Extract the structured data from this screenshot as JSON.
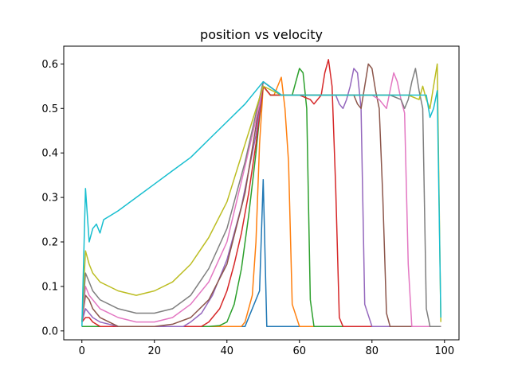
{
  "chart_data": {
    "type": "line",
    "title": "position vs velocity",
    "xlabel": "",
    "ylabel": "",
    "xlim": [
      -5,
      104
    ],
    "ylim": [
      -0.02,
      0.64
    ],
    "xticks": [
      0,
      20,
      40,
      60,
      80,
      100
    ],
    "yticks": [
      0.0,
      0.1,
      0.2,
      0.3,
      0.4,
      0.5,
      0.6
    ],
    "xtick_labels": [
      "0",
      "20",
      "40",
      "60",
      "80",
      "100"
    ],
    "ytick_labels": [
      "0.0",
      "0.1",
      "0.2",
      "0.3",
      "0.4",
      "0.5",
      "0.6"
    ],
    "grid": false,
    "legend": "none",
    "colors": [
      "#1f77b4",
      "#ff7f0e",
      "#2ca02c",
      "#d62728",
      "#9467bd",
      "#8c564b",
      "#e377c2",
      "#7f7f7f",
      "#bcbd22",
      "#17becf"
    ],
    "series": [
      {
        "x": [
          0,
          5,
          10,
          15,
          20,
          25,
          30,
          35,
          40,
          45,
          49,
          50,
          51,
          55,
          60,
          65,
          70,
          75,
          80,
          85,
          90,
          95,
          98,
          99
        ],
        "y": [
          0.01,
          0.01,
          0.01,
          0.01,
          0.01,
          0.01,
          0.01,
          0.01,
          0.01,
          0.01,
          0.09,
          0.34,
          0.01,
          0.01,
          0.01,
          0.01,
          0.01,
          0.01,
          0.01,
          0.01,
          0.01,
          0.01,
          0.01,
          0.01
        ]
      },
      {
        "x": [
          0,
          5,
          10,
          15,
          20,
          25,
          30,
          35,
          40,
          44,
          45,
          47,
          48,
          49,
          50,
          52,
          53,
          55,
          56,
          57,
          58,
          60,
          65,
          70,
          80,
          90,
          97,
          98,
          99
        ],
        "y": [
          0.01,
          0.01,
          0.01,
          0.01,
          0.01,
          0.01,
          0.01,
          0.01,
          0.01,
          0.01,
          0.02,
          0.08,
          0.2,
          0.42,
          0.55,
          0.53,
          0.53,
          0.57,
          0.5,
          0.38,
          0.06,
          0.01,
          0.01,
          0.01,
          0.01,
          0.01,
          0.01,
          0.01,
          0.01
        ]
      },
      {
        "x": [
          0,
          5,
          10,
          15,
          20,
          25,
          30,
          35,
          38,
          40,
          42,
          44,
          46,
          48,
          49,
          50,
          52,
          55,
          58,
          60,
          61,
          62,
          63,
          64,
          65,
          70,
          80,
          90,
          98,
          99
        ],
        "y": [
          0.01,
          0.01,
          0.01,
          0.01,
          0.01,
          0.01,
          0.01,
          0.01,
          0.012,
          0.02,
          0.06,
          0.14,
          0.26,
          0.4,
          0.48,
          0.55,
          0.53,
          0.53,
          0.53,
          0.59,
          0.58,
          0.5,
          0.07,
          0.01,
          0.01,
          0.01,
          0.01,
          0.01,
          0.01,
          0.01
        ]
      },
      {
        "x": [
          0,
          1,
          2,
          3,
          5,
          10,
          15,
          20,
          25,
          30,
          33,
          35,
          38,
          40,
          42,
          44,
          46,
          48,
          50,
          52,
          55,
          60,
          63,
          64,
          66,
          67,
          68,
          69,
          70,
          71,
          72,
          75,
          80,
          90,
          98,
          99
        ],
        "y": [
          0.02,
          0.03,
          0.03,
          0.02,
          0.01,
          0.01,
          0.01,
          0.01,
          0.01,
          0.01,
          0.01,
          0.02,
          0.05,
          0.09,
          0.15,
          0.22,
          0.31,
          0.42,
          0.55,
          0.53,
          0.53,
          0.53,
          0.52,
          0.51,
          0.53,
          0.58,
          0.61,
          0.55,
          0.32,
          0.03,
          0.01,
          0.01,
          0.01,
          0.01,
          0.01,
          0.01
        ]
      },
      {
        "x": [
          0,
          1,
          2,
          3,
          5,
          10,
          15,
          20,
          25,
          28,
          30,
          33,
          36,
          40,
          44,
          48,
          50,
          55,
          60,
          65,
          70,
          71,
          72,
          73,
          74,
          75,
          76,
          77,
          78,
          80,
          90,
          98,
          99
        ],
        "y": [
          0.02,
          0.05,
          0.04,
          0.03,
          0.02,
          0.01,
          0.01,
          0.01,
          0.01,
          0.01,
          0.02,
          0.04,
          0.08,
          0.16,
          0.28,
          0.44,
          0.56,
          0.53,
          0.53,
          0.53,
          0.53,
          0.51,
          0.5,
          0.52,
          0.55,
          0.59,
          0.58,
          0.5,
          0.06,
          0.01,
          0.01,
          0.01,
          0.01
        ]
      },
      {
        "x": [
          0,
          1,
          2,
          3,
          4,
          5,
          10,
          15,
          20,
          25,
          30,
          35,
          40,
          45,
          50,
          55,
          60,
          65,
          70,
          75,
          76,
          77,
          78,
          79,
          80,
          81,
          82,
          83,
          84,
          85,
          90,
          98,
          99
        ],
        "y": [
          0.02,
          0.08,
          0.07,
          0.05,
          0.04,
          0.03,
          0.01,
          0.01,
          0.01,
          0.015,
          0.03,
          0.07,
          0.15,
          0.31,
          0.56,
          0.53,
          0.53,
          0.53,
          0.53,
          0.53,
          0.51,
          0.5,
          0.55,
          0.6,
          0.59,
          0.54,
          0.5,
          0.3,
          0.04,
          0.01,
          0.01,
          0.01,
          0.01
        ]
      },
      {
        "x": [
          0,
          1,
          2,
          3,
          4,
          5,
          10,
          15,
          20,
          25,
          30,
          35,
          40,
          45,
          49,
          50,
          55,
          60,
          65,
          70,
          75,
          80,
          82,
          84,
          85,
          86,
          87,
          88,
          89,
          90,
          91,
          98,
          99
        ],
        "y": [
          0.02,
          0.1,
          0.08,
          0.07,
          0.06,
          0.05,
          0.03,
          0.02,
          0.02,
          0.03,
          0.06,
          0.11,
          0.2,
          0.37,
          0.51,
          0.56,
          0.53,
          0.53,
          0.53,
          0.53,
          0.53,
          0.53,
          0.52,
          0.5,
          0.54,
          0.58,
          0.56,
          0.52,
          0.49,
          0.15,
          0.01,
          0.01,
          0.01
        ]
      },
      {
        "x": [
          0,
          1,
          2,
          3,
          4,
          5,
          10,
          15,
          20,
          25,
          30,
          35,
          40,
          45,
          50,
          55,
          60,
          65,
          70,
          75,
          80,
          85,
          88,
          89,
          90,
          91,
          92,
          93,
          94,
          95,
          96,
          98,
          99
        ],
        "y": [
          0.02,
          0.13,
          0.11,
          0.09,
          0.08,
          0.07,
          0.05,
          0.04,
          0.04,
          0.05,
          0.08,
          0.14,
          0.23,
          0.38,
          0.56,
          0.53,
          0.53,
          0.53,
          0.53,
          0.53,
          0.53,
          0.53,
          0.52,
          0.5,
          0.52,
          0.56,
          0.59,
          0.54,
          0.5,
          0.05,
          0.01,
          0.01,
          0.01
        ]
      },
      {
        "x": [
          0,
          1,
          2,
          3,
          4,
          5,
          10,
          15,
          20,
          25,
          30,
          35,
          40,
          45,
          50,
          55,
          60,
          65,
          70,
          75,
          80,
          85,
          90,
          93,
          94,
          95,
          96,
          97,
          98,
          99
        ],
        "y": [
          0.02,
          0.18,
          0.15,
          0.13,
          0.12,
          0.11,
          0.09,
          0.08,
          0.09,
          0.11,
          0.15,
          0.21,
          0.29,
          0.42,
          0.55,
          0.53,
          0.53,
          0.53,
          0.53,
          0.53,
          0.53,
          0.53,
          0.53,
          0.52,
          0.55,
          0.52,
          0.5,
          0.55,
          0.6,
          0.02
        ]
      },
      {
        "x": [
          0,
          1,
          2,
          3,
          4,
          5,
          6,
          8,
          10,
          15,
          20,
          25,
          30,
          35,
          40,
          45,
          49,
          50,
          55,
          60,
          65,
          70,
          75,
          80,
          85,
          90,
          95,
          96,
          97,
          98,
          99
        ],
        "y": [
          0.01,
          0.32,
          0.2,
          0.23,
          0.24,
          0.22,
          0.25,
          0.26,
          0.27,
          0.3,
          0.33,
          0.36,
          0.39,
          0.43,
          0.47,
          0.51,
          0.55,
          0.56,
          0.53,
          0.53,
          0.53,
          0.53,
          0.53,
          0.53,
          0.53,
          0.53,
          0.53,
          0.48,
          0.5,
          0.54,
          0.03
        ]
      }
    ]
  }
}
